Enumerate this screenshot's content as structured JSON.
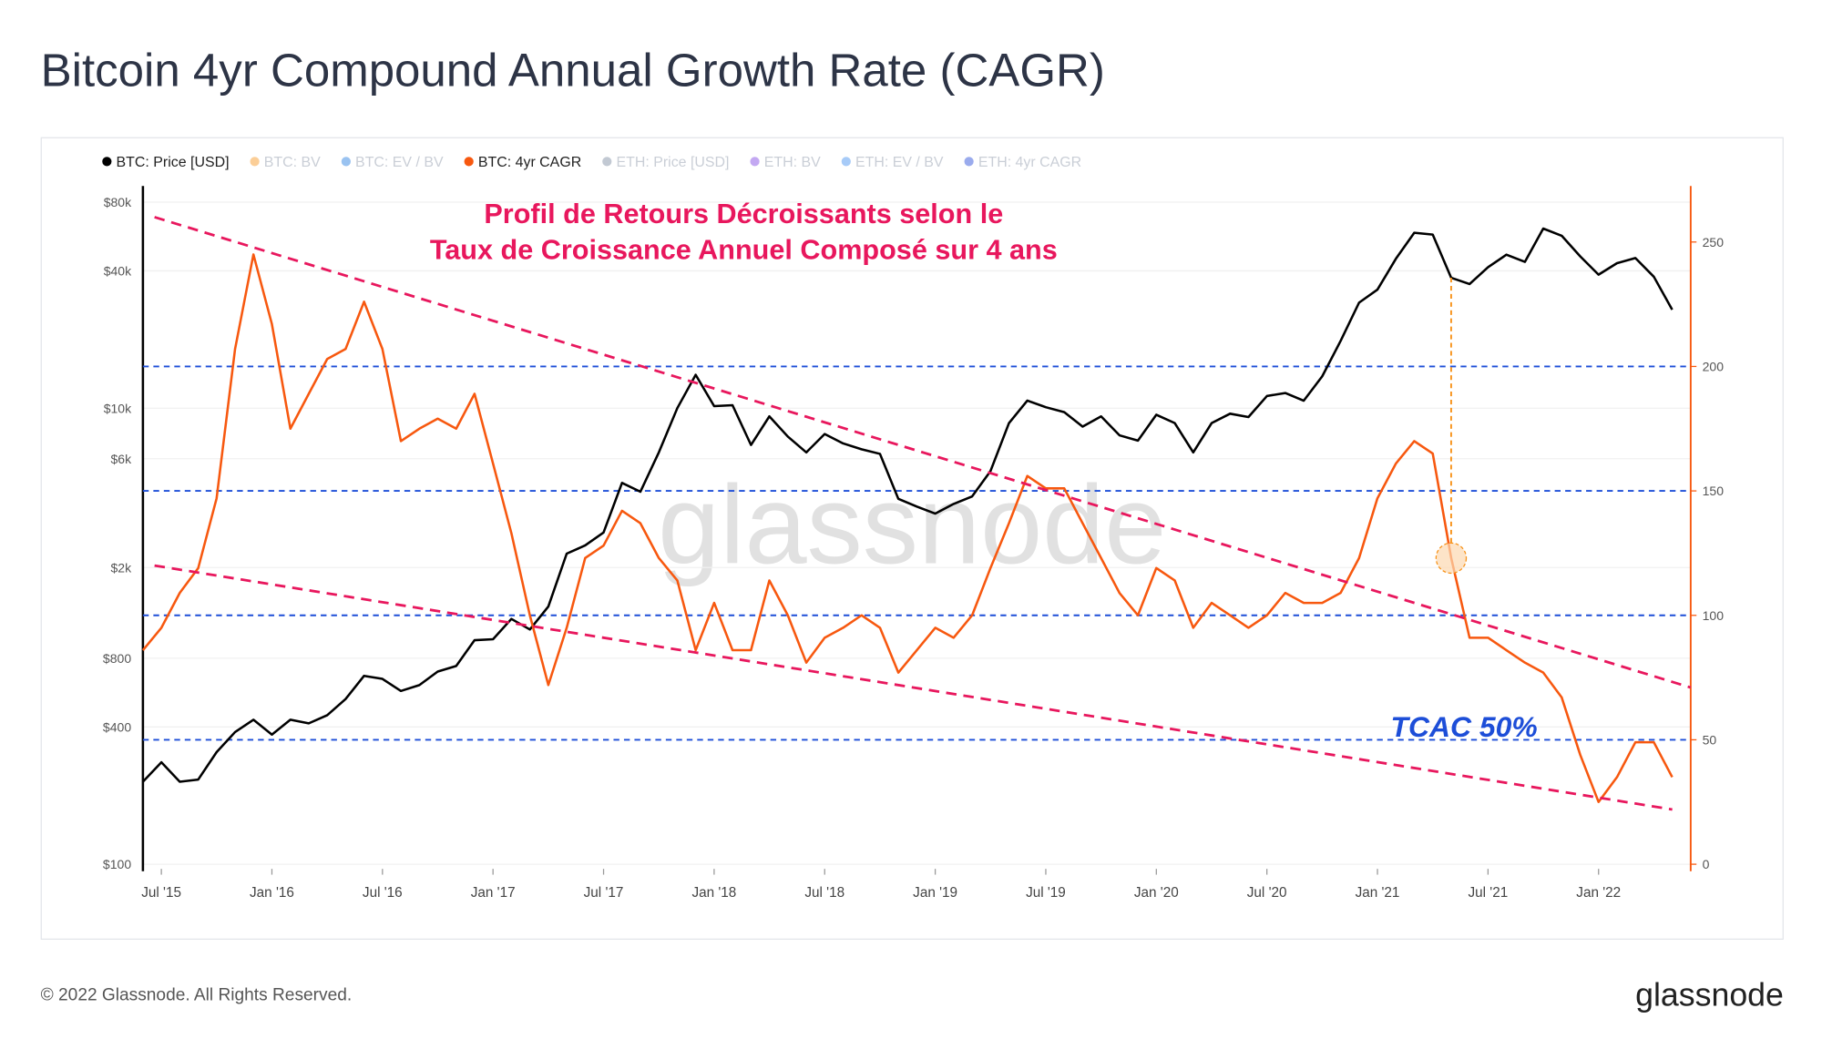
{
  "chart_data": {
    "type": "line",
    "title": "Bitcoin 4yr Compound Annual Growth Rate (CAGR)",
    "x": [
      "2015-06",
      "2015-07",
      "2015-08",
      "2015-09",
      "2015-10",
      "2015-11",
      "2015-12",
      "2016-01",
      "2016-02",
      "2016-03",
      "2016-04",
      "2016-05",
      "2016-06",
      "2016-07",
      "2016-08",
      "2016-09",
      "2016-10",
      "2016-11",
      "2016-12",
      "2017-01",
      "2017-02",
      "2017-03",
      "2017-04",
      "2017-05",
      "2017-06",
      "2017-07",
      "2017-08",
      "2017-09",
      "2017-10",
      "2017-11",
      "2017-12",
      "2018-01",
      "2018-02",
      "2018-03",
      "2018-04",
      "2018-05",
      "2018-06",
      "2018-07",
      "2018-08",
      "2018-09",
      "2018-10",
      "2018-11",
      "2018-12",
      "2019-01",
      "2019-02",
      "2019-03",
      "2019-04",
      "2019-05",
      "2019-06",
      "2019-07",
      "2019-08",
      "2019-09",
      "2019-10",
      "2019-11",
      "2019-12",
      "2020-01",
      "2020-02",
      "2020-03",
      "2020-04",
      "2020-05",
      "2020-06",
      "2020-07",
      "2020-08",
      "2020-09",
      "2020-10",
      "2020-11",
      "2020-12",
      "2021-01",
      "2021-02",
      "2021-03",
      "2021-04",
      "2021-05",
      "2021-06",
      "2021-07",
      "2021-08",
      "2021-09",
      "2021-10",
      "2021-11",
      "2021-12",
      "2022-01",
      "2022-02",
      "2022-03",
      "2022-04",
      "2022-05"
    ],
    "xlim": [
      "2015-06",
      "2022-06"
    ],
    "xticks": [
      {
        "value": "2015-07",
        "label": "Jul '15"
      },
      {
        "value": "2016-01",
        "label": "Jan '16"
      },
      {
        "value": "2016-07",
        "label": "Jul '16"
      },
      {
        "value": "2017-01",
        "label": "Jan '17"
      },
      {
        "value": "2017-07",
        "label": "Jul '17"
      },
      {
        "value": "2018-01",
        "label": "Jan '18"
      },
      {
        "value": "2018-07",
        "label": "Jul '18"
      },
      {
        "value": "2019-01",
        "label": "Jan '19"
      },
      {
        "value": "2019-07",
        "label": "Jul '19"
      },
      {
        "value": "2020-01",
        "label": "Jan '20"
      },
      {
        "value": "2020-07",
        "label": "Jul '20"
      },
      {
        "value": "2021-01",
        "label": "Jan '21"
      },
      {
        "value": "2021-07",
        "label": "Jul '21"
      },
      {
        "value": "2022-01",
        "label": "Jan '22"
      }
    ],
    "ylim": [
      100,
      80000
    ],
    "log_y": true,
    "yticks": [
      {
        "value": 100,
        "label": "$100"
      },
      {
        "value": 400,
        "label": "$400"
      },
      {
        "value": 800,
        "label": "$800"
      },
      {
        "value": 2000,
        "label": "$2k"
      },
      {
        "value": 6000,
        "label": "$6k"
      },
      {
        "value": 10000,
        "label": "$10k"
      },
      {
        "value": 40000,
        "label": "$40k"
      },
      {
        "value": 80000,
        "label": "$80k"
      }
    ],
    "y2lim": [
      0,
      266
    ],
    "y2ticks": [
      0,
      50,
      100,
      150,
      200,
      250
    ],
    "grid": true,
    "series": [
      {
        "name": "BTC: Price [USD]",
        "color": "#000000",
        "visible": true,
        "values": [
          230,
          280,
          230,
          235,
          310,
          380,
          430,
          370,
          430,
          415,
          450,
          530,
          670,
          650,
          575,
          610,
          700,
          740,
          960,
          970,
          1190,
          1070,
          1350,
          2300,
          2500,
          2850,
          4700,
          4300,
          6400,
          10000,
          14000,
          10200,
          10300,
          6900,
          9200,
          7500,
          6400,
          7700,
          7000,
          6600,
          6300,
          4000,
          3700,
          3450,
          3800,
          4100,
          5300,
          8600,
          10800,
          10100,
          9600,
          8300,
          9200,
          7600,
          7200,
          9350,
          8600,
          6400,
          8600,
          9450,
          9140,
          11300,
          11650,
          10780,
          13800,
          19700,
          29000,
          33100,
          45200,
          58800,
          57700,
          37300,
          35000,
          41500,
          47100,
          43800,
          61300,
          57000,
          46300,
          38500,
          43200,
          45500,
          37700,
          27000
        ]
      },
      {
        "name": "BTC: BV",
        "color": "#f7931a",
        "visible": false,
        "values": null
      },
      {
        "name": "BTC: EV / BV",
        "color": "#1f7ae0",
        "visible": false,
        "values": null
      },
      {
        "name": "BTC: 4yr CAGR",
        "color": "#f7580f",
        "visible": true,
        "axis": "y2",
        "values": [
          86,
          95,
          109,
          119,
          147,
          207,
          245,
          217,
          175,
          189,
          203,
          207,
          226,
          207,
          170,
          175,
          179,
          175,
          189,
          161,
          133,
          100,
          72,
          95,
          123,
          128,
          142,
          137,
          123,
          114,
          86,
          105,
          86,
          86,
          114,
          100,
          81,
          91,
          95,
          100,
          95,
          77,
          86,
          95,
          91,
          100,
          119,
          137,
          156,
          151,
          151,
          137,
          123,
          109,
          100,
          119,
          114,
          95,
          105,
          100,
          95,
          100,
          109,
          105,
          105,
          109,
          123,
          147,
          161,
          170,
          165,
          123,
          91,
          91,
          86,
          81,
          77,
          67,
          44,
          25,
          35,
          49,
          49,
          35
        ]
      },
      {
        "name": "ETH: Price [USD]",
        "color": "#7a8aa0",
        "visible": false,
        "values": null
      },
      {
        "name": "ETH: BV",
        "color": "#7b3fe4",
        "visible": false,
        "values": null
      },
      {
        "name": "ETH: EV / BV",
        "color": "#3d8ef0",
        "visible": false,
        "values": null
      },
      {
        "name": "ETH: 4yr CAGR",
        "color": "#2146d9",
        "visible": false,
        "values": null
      }
    ],
    "reference_lines": {
      "axis": "y2",
      "color": "#1d4ed8",
      "values": [
        50,
        100,
        150,
        200
      ]
    },
    "trend_lines": [
      {
        "color": "#e8175d",
        "x": [
          "2015-06",
          "2022-06"
        ],
        "values": [
          260,
          71
        ]
      },
      {
        "color": "#e8175d",
        "x": [
          "2015-06",
          "2022-05"
        ],
        "values": [
          120,
          22
        ]
      }
    ],
    "highlight": {
      "x": "2021-05",
      "color": "#f7931a"
    },
    "annotations": {
      "headline": [
        "Profil de Retours Décroissants selon le",
        "Taux de Croissance Annuel Composé sur 4 ans"
      ],
      "headline_color": "#e8175d",
      "label": "TCAC 50%",
      "label_color": "#1d4ed8"
    },
    "watermark": "glassnode"
  },
  "footer": {
    "copyright": "© 2022 Glassnode. All Rights Reserved.",
    "logo": "glassnode"
  }
}
